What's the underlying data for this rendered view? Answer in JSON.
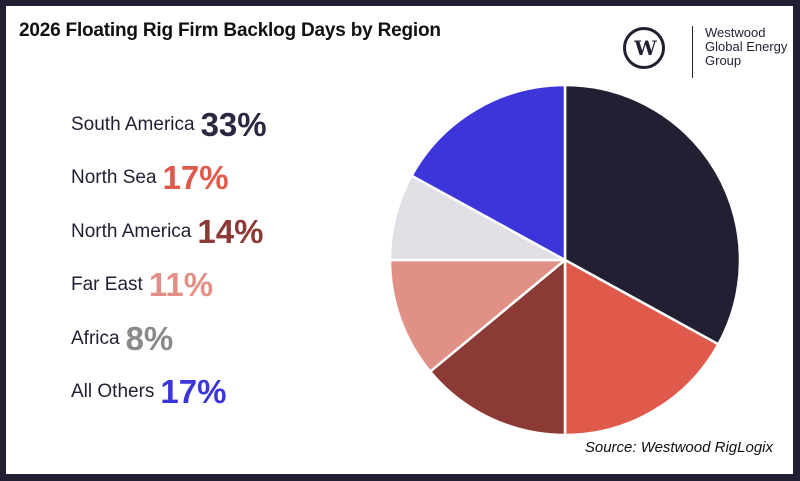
{
  "header": {
    "title": "2026 Floating Rig Firm Backlog Days by Region"
  },
  "logo": {
    "glyph": "W",
    "lines": [
      "Westwood",
      "Global Energy",
      "Group"
    ]
  },
  "legend": [
    {
      "label": "South America",
      "value": "33%",
      "color": "#221f33"
    },
    {
      "label": "North Sea",
      "value": "17%",
      "color": "#df5a4a"
    },
    {
      "label": "North America",
      "value": "14%",
      "color": "#8c3a35"
    },
    {
      "label": "Far East",
      "value": "11%",
      "color": "#e19085"
    },
    {
      "label": "Africa",
      "value": "8%",
      "color": "#8a8a8a"
    },
    {
      "label": "All Others",
      "value": "17%",
      "color": "#3c35da"
    }
  ],
  "footer": {
    "source": "Source: Westwood RigLogix"
  },
  "chart_data": {
    "type": "pie",
    "title": "2026 Floating Rig Firm Backlog Days by Region",
    "categories": [
      "South America",
      "North Sea",
      "North America",
      "Far East",
      "Africa",
      "All Others"
    ],
    "values": [
      33,
      17,
      14,
      11,
      8,
      17
    ],
    "unit": "%",
    "colors": [
      "#221f33",
      "#df5a4a",
      "#8c3a35",
      "#e19085",
      "#e0dfe5",
      "#3c35da"
    ],
    "start_angle": "12 o'clock",
    "direction": "clockwise",
    "legend_position": "left",
    "source": "Source: Westwood RigLogix"
  }
}
